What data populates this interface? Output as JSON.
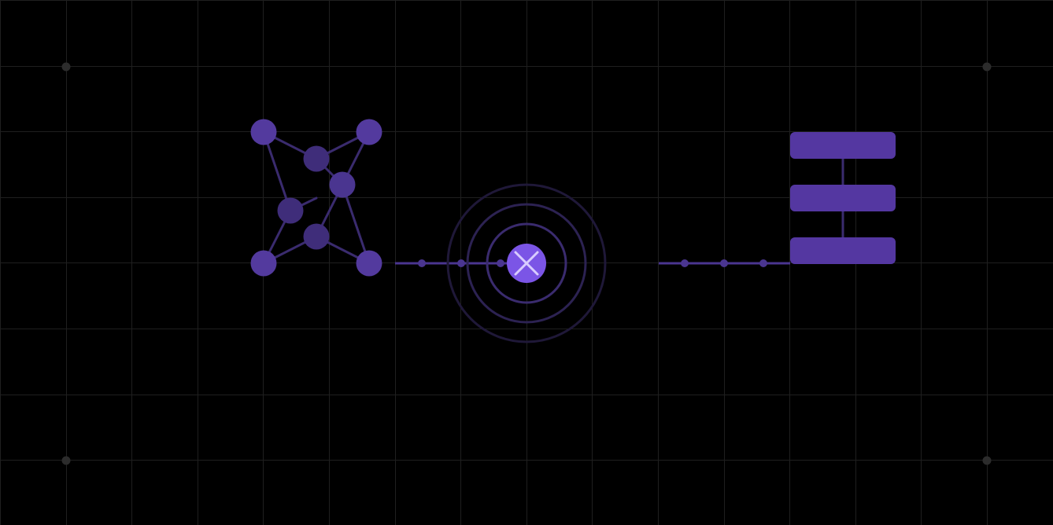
{
  "colors": {
    "background": "#000000",
    "grid": "#1f1f1f",
    "grid_dot": "#2c2c2c",
    "node": "#523a9c",
    "node_dim": "#3f2d7a",
    "edge": "#3a2b6e",
    "accent": "#7b55e6",
    "ring": "#3a2b6e",
    "block": "#5437a1",
    "connector": "#4a3590"
  },
  "icons": {
    "center": "close-x-icon"
  },
  "diagram": {
    "network_nodes": 8,
    "dots_left": 3,
    "dots_right": 3,
    "rings": 3,
    "stack_blocks": 3
  }
}
